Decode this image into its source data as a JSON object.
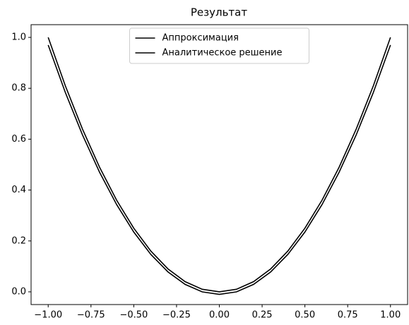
{
  "chart_data": {
    "type": "line",
    "title": "Результат",
    "x": [
      -1,
      -0.9,
      -0.8,
      -0.7,
      -0.6,
      -0.5,
      -0.4,
      -0.3,
      -0.2,
      -0.1,
      0,
      0.1,
      0.2,
      0.3,
      0.4,
      0.5,
      0.6,
      0.7,
      0.8,
      0.9,
      1
    ],
    "series": [
      {
        "name": "Аппроксимация",
        "color": "#000000",
        "values": [
          0.97,
          0.7838,
          0.6172,
          0.4702,
          0.3428,
          0.235,
          0.1468,
          0.0782,
          0.0292,
          -0.0002,
          -0.01,
          -0.0002,
          0.0292,
          0.0782,
          0.1468,
          0.235,
          0.3428,
          0.4702,
          0.6172,
          0.7838,
          0.97
        ]
      },
      {
        "name": "Аналитическое решение",
        "color": "#000000",
        "values": [
          1,
          0.81,
          0.64,
          0.49,
          0.36,
          0.25,
          0.16,
          0.09,
          0.04,
          0.01,
          0,
          0.01,
          0.04,
          0.09,
          0.16,
          0.25,
          0.36,
          0.49,
          0.64,
          0.81,
          1
        ]
      }
    ],
    "xlim": [
      -1.1,
      1.1
    ],
    "ylim": [
      -0.05,
      1.05
    ],
    "xticks": [
      {
        "value": -1,
        "label": "−1.00"
      },
      {
        "value": -0.75,
        "label": "−0.75"
      },
      {
        "value": -0.5,
        "label": "−0.50"
      },
      {
        "value": -0.25,
        "label": "−0.25"
      },
      {
        "value": 0,
        "label": "0.00"
      },
      {
        "value": 0.25,
        "label": "0.25"
      },
      {
        "value": 0.5,
        "label": "0.50"
      },
      {
        "value": 0.75,
        "label": "0.75"
      },
      {
        "value": 1,
        "label": "1.00"
      }
    ],
    "yticks": [
      {
        "value": 0,
        "label": "0.0"
      },
      {
        "value": 0.2,
        "label": "0.2"
      },
      {
        "value": 0.4,
        "label": "0.4"
      },
      {
        "value": 0.6,
        "label": "0.6"
      },
      {
        "value": 0.8,
        "label": "0.8"
      },
      {
        "value": 1,
        "label": "1.0"
      }
    ],
    "legend": "upper center",
    "grid": false
  }
}
